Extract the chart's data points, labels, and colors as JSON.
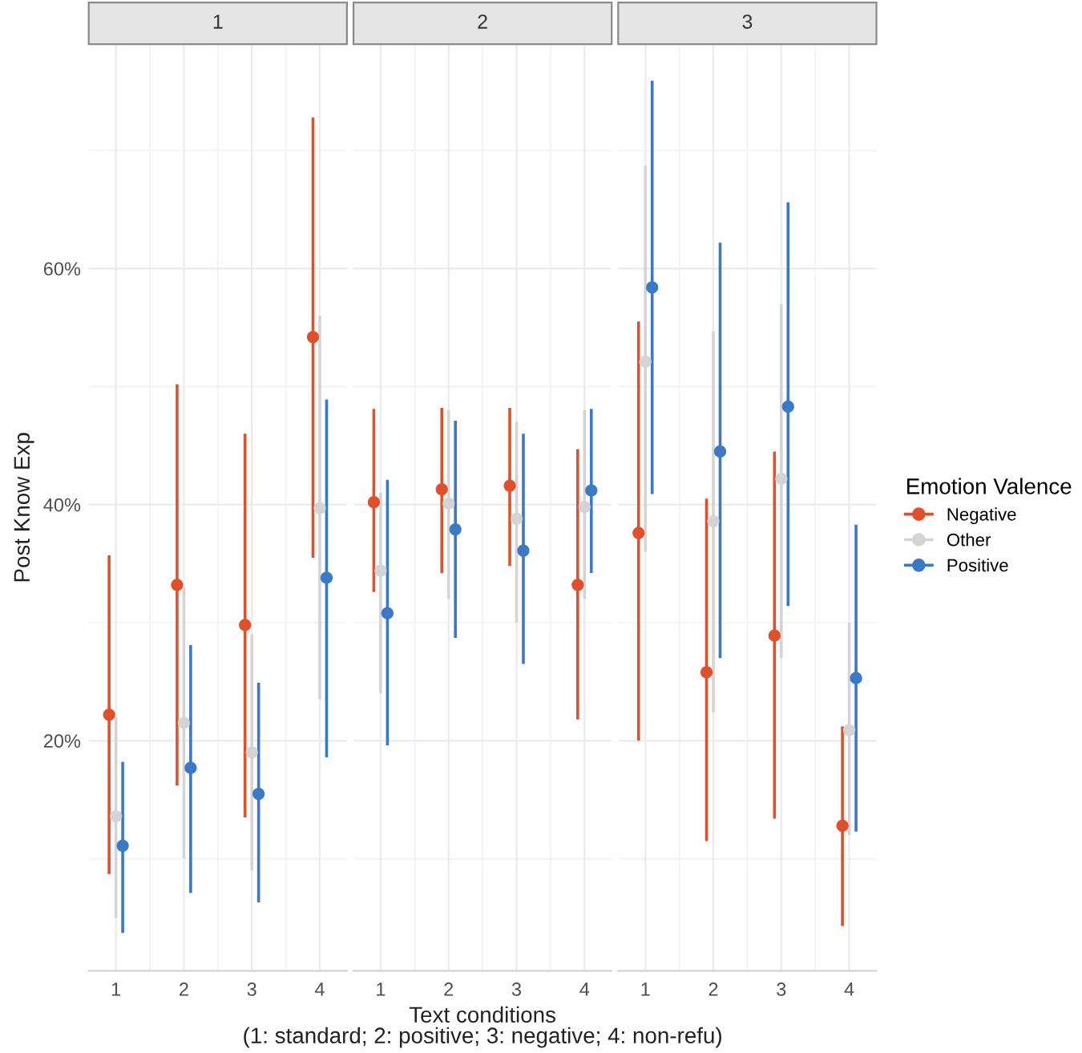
{
  "chart_data": [
    {
      "type": "scatter",
      "title": "1",
      "ylabel": "Post Know Exp",
      "legend_title": "Emotion Valence",
      "legend": "right",
      "categories": [
        "1",
        "2",
        "3",
        "4"
      ],
      "ylim": [
        0.5,
        79
      ],
      "yticks": [
        {
          "value": 20,
          "label": "20%"
        },
        {
          "value": 40,
          "label": "40%"
        },
        {
          "value": 60,
          "label": "60%"
        }
      ],
      "grid": true,
      "marker": "circle",
      "series": [
        {
          "name": "Negative",
          "color": "#e0512b",
          "values": [
            22.2,
            33.2,
            29.8,
            54.2
          ],
          "errors": [
            [
              8.7,
              35.7
            ],
            [
              16.2,
              50.2
            ],
            [
              13.5,
              46.0
            ],
            [
              35.5,
              72.8
            ]
          ]
        },
        {
          "name": "Other",
          "color": "#d4d4d4",
          "values": [
            13.6,
            21.5,
            19.0,
            39.7
          ],
          "errors": [
            [
              5,
              22
            ],
            [
              10,
              33
            ],
            [
              9,
              29
            ],
            [
              23.5,
              56
            ]
          ]
        },
        {
          "name": "Positive",
          "color": "#3a78c8",
          "values": [
            11.1,
            17.7,
            15.5,
            33.8
          ],
          "errors": [
            [
              3.7,
              18.2
            ],
            [
              7.1,
              28.1
            ],
            [
              6.3,
              24.9
            ],
            [
              18.6,
              48.9
            ]
          ]
        }
      ]
    },
    {
      "type": "scatter",
      "title": "2",
      "xlabel": "Text conditions\n(1: standard; 2: positive; 3: negative; 4: non-refu)",
      "categories": [
        "1",
        "2",
        "3",
        "4"
      ],
      "ylim": [
        0.5,
        79
      ],
      "yticks": [
        20,
        40,
        60
      ],
      "grid": true,
      "marker": "circle",
      "tick_labels": "x",
      "series": [
        {
          "color": "#e0512b",
          "values": [
            40.2,
            41.3,
            41.6,
            33.2
          ],
          "errors": [
            [
              32.6,
              48.1
            ],
            [
              34.2,
              48.2
            ],
            [
              34.8,
              48.2
            ],
            [
              21.8,
              44.7
            ]
          ]
        },
        {
          "color": "#d4d4d4",
          "values": [
            34.4,
            40.1,
            38.8,
            39.8
          ],
          "errors": [
            [
              24,
              41
            ],
            [
              32,
              48
            ],
            [
              30,
              47
            ],
            [
              32,
              48
            ]
          ]
        },
        {
          "color": "#3a78c8",
          "values": [
            30.8,
            37.9,
            36.1,
            41.2
          ],
          "errors": [
            [
              19.6,
              42.1
            ],
            [
              28.7,
              47.1
            ],
            [
              26.5,
              46.0
            ],
            [
              34.2,
              48.1
            ]
          ]
        }
      ]
    },
    {
      "type": "scatter",
      "title": "3",
      "categories": [
        "1",
        "2",
        "3",
        "4"
      ],
      "ylim": [
        0.5,
        79
      ],
      "yticks": [
        20,
        40,
        60
      ],
      "grid": true,
      "marker": "circle",
      "tick_labels": "x",
      "series": [
        {
          "color": "#e0512b",
          "values": [
            37.6,
            25.8,
            28.9,
            12.8
          ],
          "errors": [
            [
              20.0,
              55.5
            ],
            [
              11.5,
              40.5
            ],
            [
              13.4,
              44.5
            ],
            [
              4.3,
              21.2
            ]
          ]
        },
        {
          "color": "#d4d4d4",
          "values": [
            52.1,
            38.6,
            42.2,
            20.9
          ],
          "errors": [
            [
              36,
              68.7
            ],
            [
              22.4,
              54.7
            ],
            [
              27,
              57
            ],
            [
              12,
              30
            ]
          ]
        },
        {
          "color": "#3a78c8",
          "values": [
            58.4,
            44.5,
            48.3,
            25.3
          ],
          "errors": [
            [
              40.9,
              75.9
            ],
            [
              27.0,
              62.2
            ],
            [
              31.4,
              65.6
            ],
            [
              12.3,
              38.3
            ]
          ]
        }
      ]
    }
  ]
}
